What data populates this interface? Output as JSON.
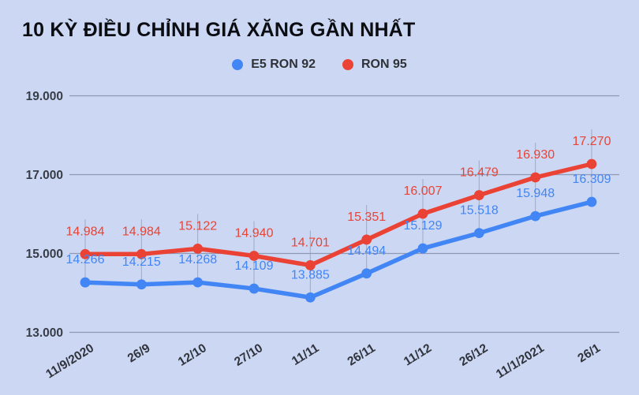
{
  "title": "10 KỲ ĐIỀU CHỈNH GIÁ XĂNG GẦN NHẤT",
  "colors": {
    "background": "#ccd8f3",
    "grid": "#8f99b4",
    "leader_line": "#8f99b4",
    "axis_text": "#373c47",
    "title_text": "#0b0d12",
    "series_blue": "#4285f4",
    "series_red": "#ea4335"
  },
  "chart_data": {
    "type": "line",
    "title": "10 KỲ ĐIỀU CHỈNH GIÁ XĂNG GẦN NHẤT",
    "categories": [
      "11/9/2020",
      "26/9",
      "12/10",
      "27/10",
      "11/11",
      "26/11",
      "11/12",
      "26/12",
      "11/1/2021",
      "26/1"
    ],
    "series": [
      {
        "name": "E5 RON 92",
        "color": "#4285f4",
        "values": [
          14266,
          14215,
          14268,
          14109,
          13885,
          14494,
          15129,
          15518,
          15948,
          16309
        ]
      },
      {
        "name": "RON 95",
        "color": "#ea4335",
        "values": [
          14984,
          14984,
          15122,
          14940,
          14701,
          15351,
          16007,
          16479,
          16930,
          17270
        ]
      }
    ],
    "ylim": [
      13000,
      19000
    ],
    "yticks": [
      13000,
      15000,
      17000,
      19000
    ],
    "ytick_labels": [
      "13.000",
      "15.000",
      "17.000",
      "19.000"
    ],
    "label_format": "thousands-dot-separator",
    "grid": "horizontal",
    "data_labels": true,
    "legend_position": "top-center",
    "xlabel": "",
    "ylabel": ""
  }
}
